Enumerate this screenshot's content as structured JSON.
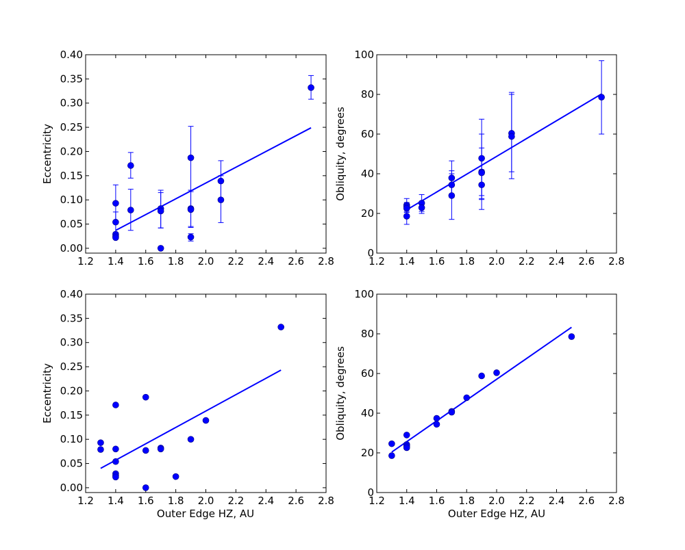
{
  "figure": {
    "background": "#ffffff",
    "marker_color": "#0000ff",
    "line_color": "#0000ff"
  },
  "chart_data": [
    {
      "type": "scatter",
      "panel": "top-left",
      "title": "",
      "xlabel": "",
      "ylabel": "Eccentricity",
      "xlim": [
        1.2,
        2.8
      ],
      "ylim": [
        -0.01,
        0.4
      ],
      "xticks": [
        "1.2",
        "1.4",
        "1.6",
        "1.8",
        "2.0",
        "2.2",
        "2.4",
        "2.6",
        "2.8"
      ],
      "yticks": [
        "0.00",
        "0.05",
        "0.10",
        "0.15",
        "0.20",
        "0.25",
        "0.30",
        "0.35",
        "0.40"
      ],
      "points": [
        {
          "x": 1.4,
          "y": 0.093,
          "err": [
            0.055,
            0.131
          ]
        },
        {
          "x": 1.4,
          "y": 0.054,
          "err": [
            0.031,
            0.075
          ]
        },
        {
          "x": 1.4,
          "y": 0.029
        },
        {
          "x": 1.4,
          "y": 0.025
        },
        {
          "x": 1.4,
          "y": 0.022
        },
        {
          "x": 1.5,
          "y": 0.171,
          "err": [
            0.145,
            0.198
          ]
        },
        {
          "x": 1.5,
          "y": 0.079,
          "err": [
            0.037,
            0.122
          ]
        },
        {
          "x": 1.7,
          "y": 0.082,
          "err": [
            0.042,
            0.12
          ]
        },
        {
          "x": 1.7,
          "y": 0.077,
          "err": [
            0.042,
            0.115
          ]
        },
        {
          "x": 1.7,
          "y": 0.0
        },
        {
          "x": 1.9,
          "y": 0.187,
          "err": [
            0.12,
            0.252
          ]
        },
        {
          "x": 1.9,
          "y": 0.082,
          "err": [
            0.045,
            0.12
          ]
        },
        {
          "x": 1.9,
          "y": 0.08,
          "err": [
            0.043,
            0.117
          ]
        },
        {
          "x": 1.9,
          "y": 0.023,
          "err": [
            0.015,
            0.03
          ]
        },
        {
          "x": 2.1,
          "y": 0.139,
          "err": [
            0.098,
            0.181
          ]
        },
        {
          "x": 2.1,
          "y": 0.1,
          "err": [
            0.053,
            0.15
          ]
        },
        {
          "x": 2.7,
          "y": 0.332,
          "err": [
            0.308,
            0.357
          ]
        }
      ],
      "fit": {
        "x": [
          1.4,
          2.7
        ],
        "y": [
          0.037,
          0.249
        ]
      }
    },
    {
      "type": "scatter",
      "panel": "top-right",
      "title": "",
      "xlabel": "",
      "ylabel": "Obliquity, degrees",
      "xlim": [
        1.2,
        2.8
      ],
      "ylim": [
        0,
        100
      ],
      "xticks": [
        "1.2",
        "1.4",
        "1.6",
        "1.8",
        "2.0",
        "2.2",
        "2.4",
        "2.6",
        "2.8"
      ],
      "yticks": [
        "0",
        "20",
        "40",
        "60",
        "80",
        "100"
      ],
      "points": [
        {
          "x": 1.4,
          "y": 24.2,
          "err": [
            20.5,
            27.5
          ]
        },
        {
          "x": 1.4,
          "y": 23.4,
          "err": [
            21.0,
            25.5
          ]
        },
        {
          "x": 1.4,
          "y": 22.6
        },
        {
          "x": 1.4,
          "y": 18.6,
          "err": [
            14.5,
            22.0
          ]
        },
        {
          "x": 1.5,
          "y": 25.2,
          "err": [
            21.0,
            29.5
          ]
        },
        {
          "x": 1.5,
          "y": 22.9,
          "err": [
            20.0,
            26.0
          ]
        },
        {
          "x": 1.7,
          "y": 37.9,
          "err": [
            29.5,
            46.5
          ]
        },
        {
          "x": 1.7,
          "y": 34.4,
          "err": [
            28.0,
            41.5
          ]
        },
        {
          "x": 1.7,
          "y": 29.0,
          "err": [
            17.0,
            40.0
          ]
        },
        {
          "x": 1.9,
          "y": 47.8,
          "err": [
            27.5,
            67.5
          ]
        },
        {
          "x": 1.9,
          "y": 40.9,
          "err": [
            29.0,
            53.0
          ]
        },
        {
          "x": 1.9,
          "y": 40.5,
          "err": [
            22.0,
            60.0
          ]
        },
        {
          "x": 1.9,
          "y": 34.4,
          "err": [
            27.0,
            42.0
          ]
        },
        {
          "x": 2.1,
          "y": 60.4,
          "err": [
            41.0,
            81.0
          ]
        },
        {
          "x": 2.1,
          "y": 58.8,
          "err": [
            37.5,
            80.0
          ]
        },
        {
          "x": 2.7,
          "y": 78.6,
          "err": [
            60.0,
            97.0
          ]
        }
      ],
      "fit": {
        "x": [
          1.4,
          2.7
        ],
        "y": [
          21.8,
          80.2
        ]
      }
    },
    {
      "type": "scatter",
      "panel": "bottom-left",
      "title": "",
      "xlabel": "Outer Edge HZ, AU",
      "ylabel": "Eccentricity",
      "xlim": [
        1.2,
        2.8
      ],
      "ylim": [
        -0.01,
        0.4
      ],
      "xticks": [
        "1.2",
        "1.4",
        "1.6",
        "1.8",
        "2.0",
        "2.2",
        "2.4",
        "2.6",
        "2.8"
      ],
      "yticks": [
        "0.00",
        "0.05",
        "0.10",
        "0.15",
        "0.20",
        "0.25",
        "0.30",
        "0.35",
        "0.40"
      ],
      "points": [
        {
          "x": 1.3,
          "y": 0.093
        },
        {
          "x": 1.3,
          "y": 0.079
        },
        {
          "x": 1.4,
          "y": 0.171
        },
        {
          "x": 1.4,
          "y": 0.08
        },
        {
          "x": 1.4,
          "y": 0.054
        },
        {
          "x": 1.4,
          "y": 0.029
        },
        {
          "x": 1.4,
          "y": 0.025
        },
        {
          "x": 1.4,
          "y": 0.022
        },
        {
          "x": 1.6,
          "y": 0.187
        },
        {
          "x": 1.6,
          "y": 0.077
        },
        {
          "x": 1.6,
          "y": 0.0
        },
        {
          "x": 1.7,
          "y": 0.082
        },
        {
          "x": 1.7,
          "y": 0.08
        },
        {
          "x": 1.8,
          "y": 0.023
        },
        {
          "x": 1.9,
          "y": 0.1
        },
        {
          "x": 2.0,
          "y": 0.139
        },
        {
          "x": 2.5,
          "y": 0.332
        }
      ],
      "fit": {
        "x": [
          1.3,
          2.5
        ],
        "y": [
          0.04,
          0.243
        ]
      }
    },
    {
      "type": "scatter",
      "panel": "bottom-right",
      "title": "",
      "xlabel": "Outer Edge HZ, AU",
      "ylabel": "Obliquity, degrees",
      "xlim": [
        1.2,
        2.8
      ],
      "ylim": [
        0,
        100
      ],
      "xticks": [
        "1.2",
        "1.4",
        "1.6",
        "1.8",
        "2.0",
        "2.2",
        "2.4",
        "2.6",
        "2.8"
      ],
      "yticks": [
        "0",
        "20",
        "40",
        "60",
        "80",
        "100"
      ],
      "points": [
        {
          "x": 1.3,
          "y": 24.6
        },
        {
          "x": 1.3,
          "y": 18.6
        },
        {
          "x": 1.4,
          "y": 29.0
        },
        {
          "x": 1.4,
          "y": 24.2
        },
        {
          "x": 1.4,
          "y": 23.4
        },
        {
          "x": 1.4,
          "y": 22.6
        },
        {
          "x": 1.6,
          "y": 37.4
        },
        {
          "x": 1.6,
          "y": 34.4
        },
        {
          "x": 1.7,
          "y": 40.9
        },
        {
          "x": 1.7,
          "y": 40.5
        },
        {
          "x": 1.8,
          "y": 47.8
        },
        {
          "x": 1.9,
          "y": 58.8
        },
        {
          "x": 2.0,
          "y": 60.4
        },
        {
          "x": 2.5,
          "y": 78.6
        }
      ],
      "fit": {
        "x": [
          1.3,
          2.5
        ],
        "y": [
          20.4,
          83.3
        ]
      }
    }
  ]
}
